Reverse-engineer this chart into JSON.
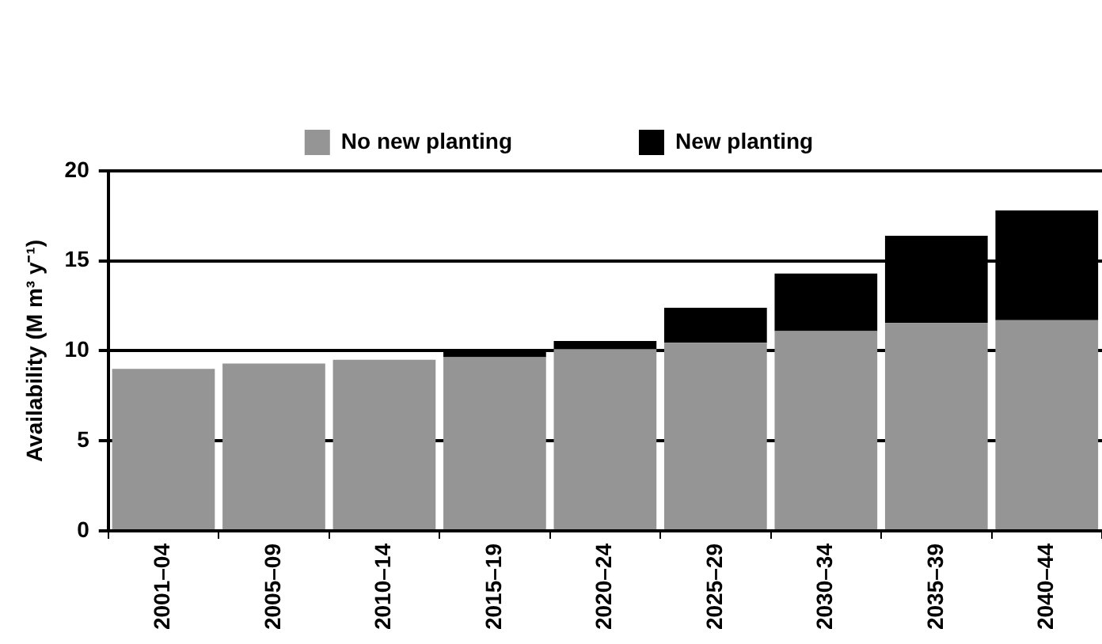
{
  "chart_data": {
    "type": "bar",
    "stacked": true,
    "ylabel": "Availability (M m³ y⁻¹)",
    "categories": [
      "2001–04",
      "2005–09",
      "2010–14",
      "2015–19",
      "2020–24",
      "2025–29",
      "2030–34",
      "2035–39",
      "2040–44"
    ],
    "series": [
      {
        "name": "No new planting",
        "color": "#959595",
        "values": [
          9.0,
          9.3,
          9.5,
          9.65,
          10.1,
          10.45,
          11.1,
          11.55,
          11.7
        ]
      },
      {
        "name": "New planting",
        "color": "#000000",
        "values": [
          0,
          0,
          0,
          0.35,
          0.45,
          1.95,
          3.2,
          4.85,
          6.1
        ]
      }
    ],
    "ylim": [
      0,
      20
    ],
    "yticks": [
      0,
      5,
      10,
      15,
      20
    ],
    "grid": "y",
    "legend": "top"
  }
}
